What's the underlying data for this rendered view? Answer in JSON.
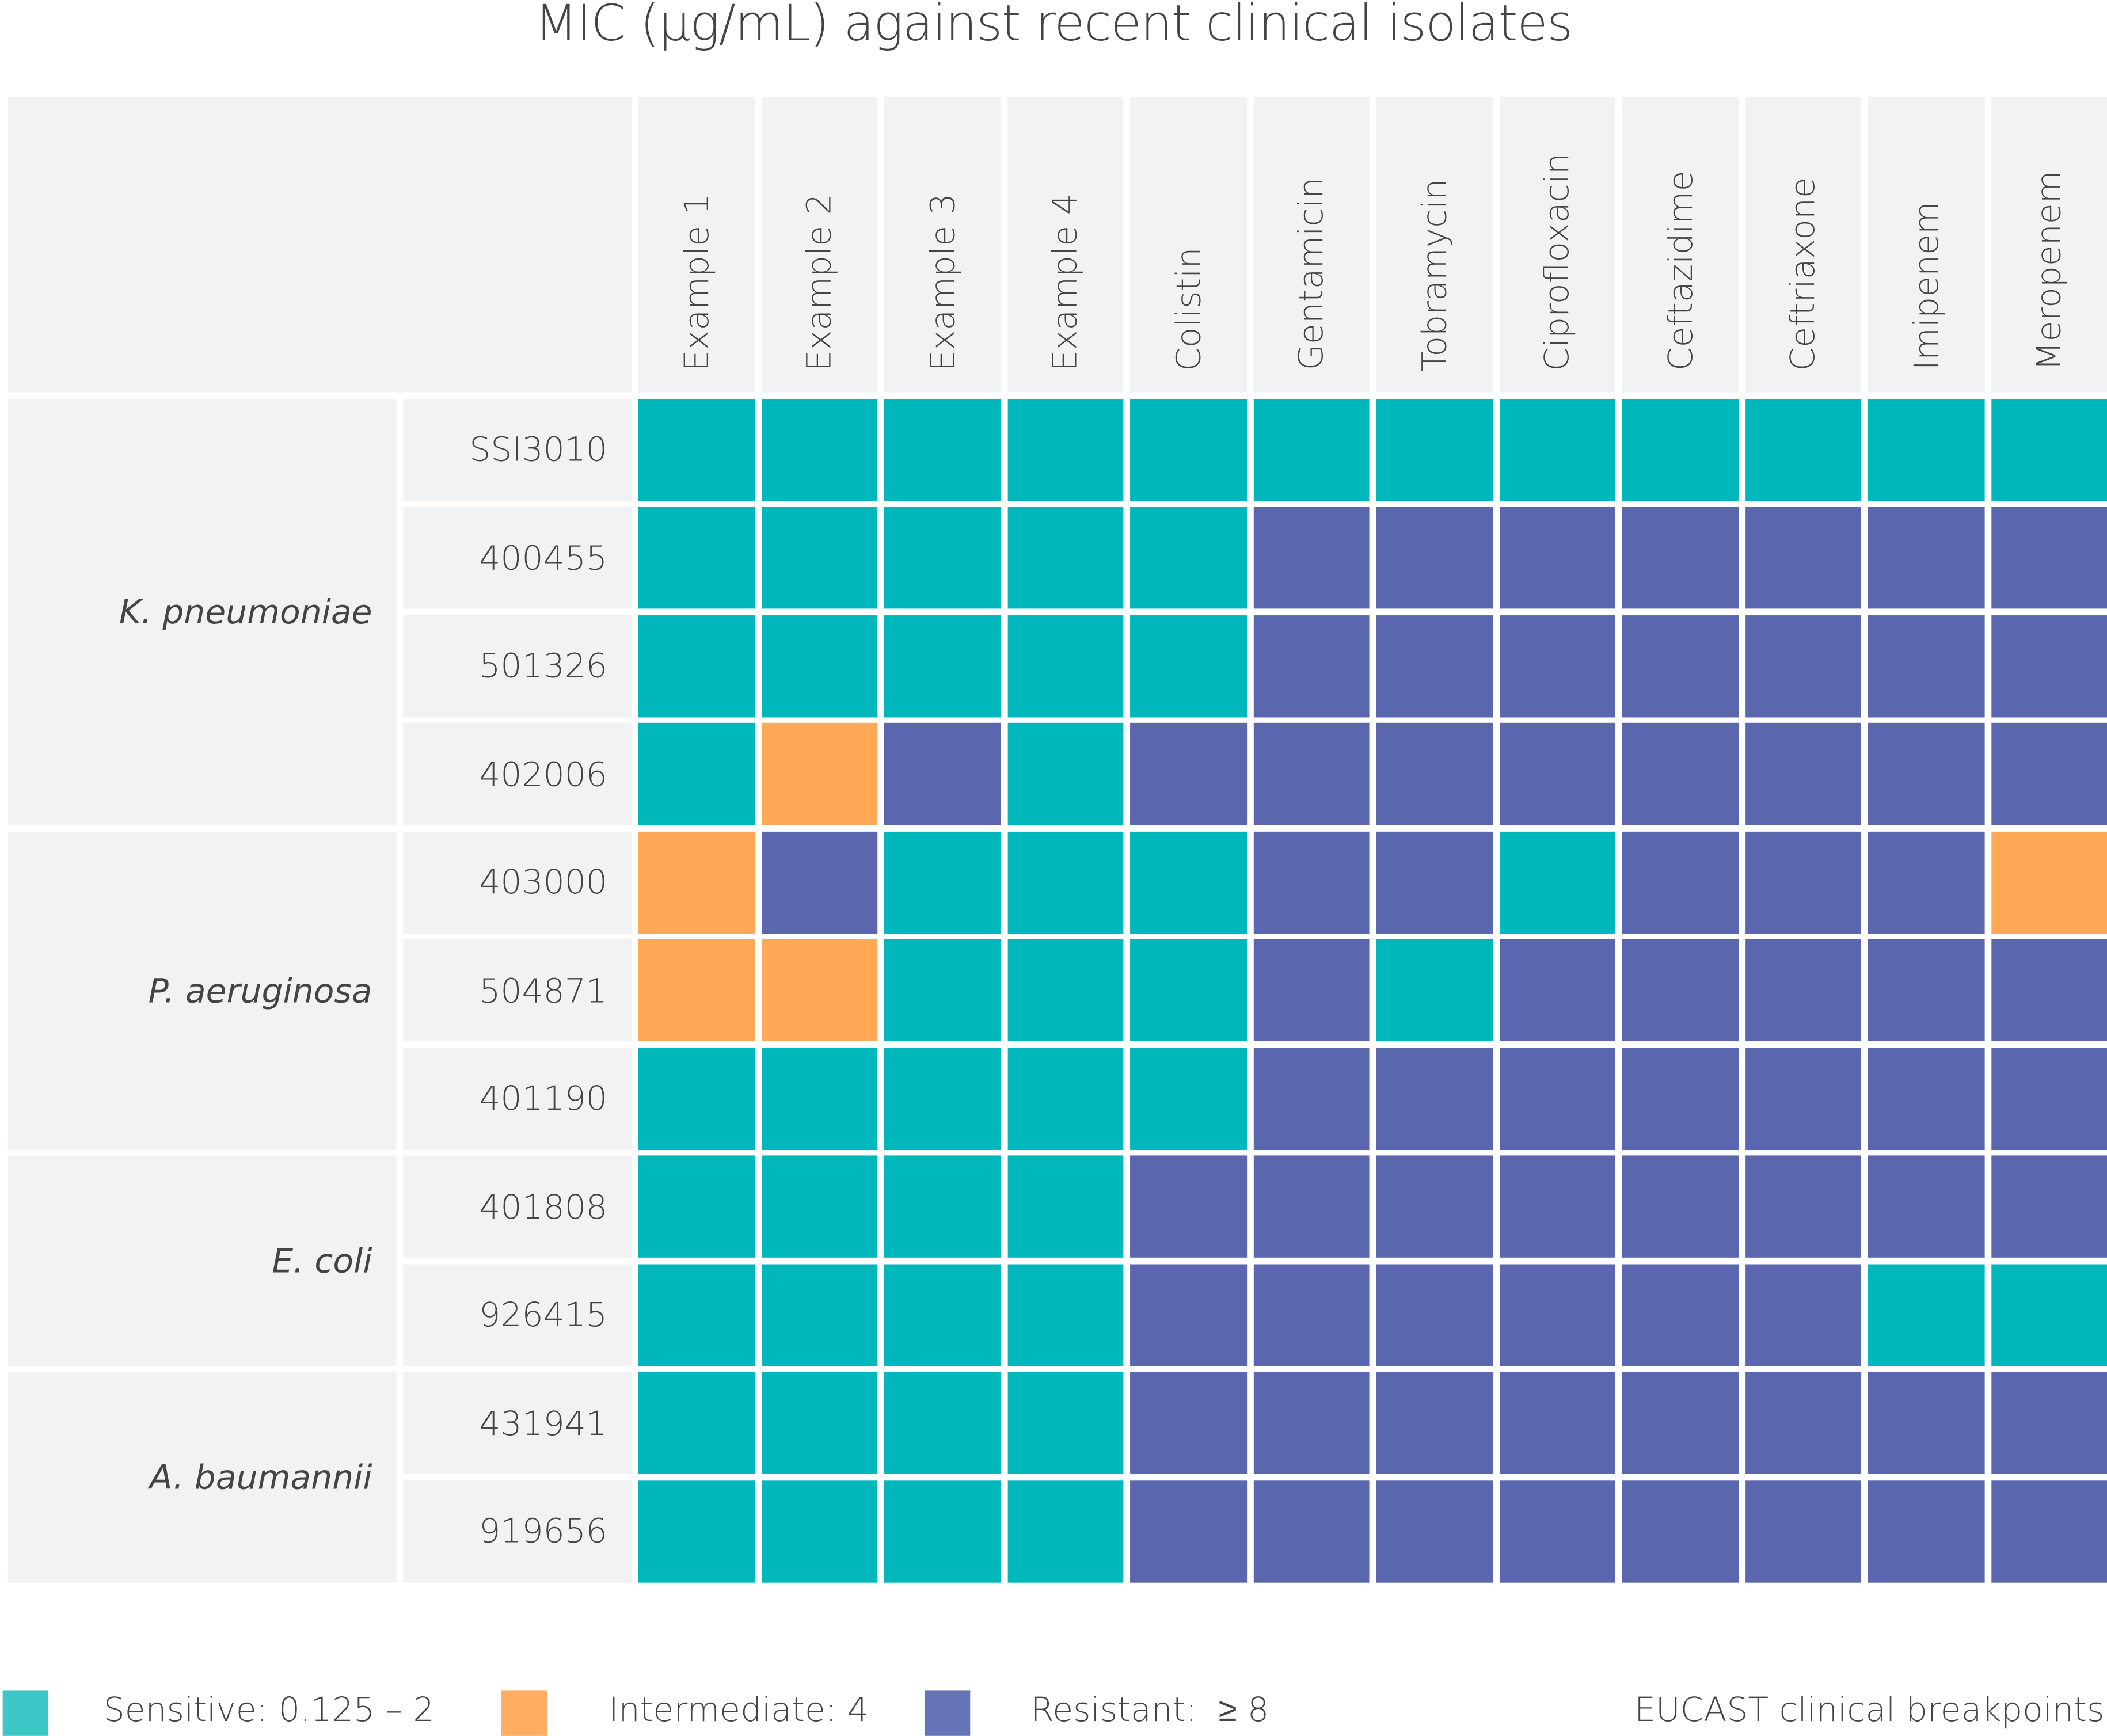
{
  "chart_data": {
    "type": "heatmap",
    "title": "MIC (µg/mL) against recent clinical isolates",
    "columns": [
      "Example 1",
      "Example 2",
      "Example 3",
      "Example 4",
      "Colistin",
      "Gentamicin",
      "Tobramycin",
      "Ciprofloxacin",
      "Ceftazidime",
      "Ceftriaxone",
      "Imipenem",
      "Meropenem"
    ],
    "groups": [
      {
        "species": "K. pneumoniae",
        "isolates": [
          "SSI3010",
          "400455",
          "501326",
          "402006"
        ]
      },
      {
        "species": "P. aeruginosa",
        "isolates": [
          "403000",
          "504871",
          "401190"
        ]
      },
      {
        "species": "E. coli",
        "isolates": [
          "401808",
          "926415"
        ]
      },
      {
        "species": "A. baumannii",
        "isolates": [
          "431941",
          "919656"
        ]
      }
    ],
    "rows": [
      {
        "isolate": "SSI3010",
        "values": [
          "S",
          "S",
          "S",
          "S",
          "S",
          "S",
          "S",
          "S",
          "S",
          "S",
          "S",
          "S"
        ]
      },
      {
        "isolate": "400455",
        "values": [
          "S",
          "S",
          "S",
          "S",
          "S",
          "R",
          "R",
          "R",
          "R",
          "R",
          "R",
          "R"
        ]
      },
      {
        "isolate": "501326",
        "values": [
          "S",
          "S",
          "S",
          "S",
          "S",
          "R",
          "R",
          "R",
          "R",
          "R",
          "R",
          "R"
        ]
      },
      {
        "isolate": "402006",
        "values": [
          "S",
          "I",
          "R",
          "S",
          "R",
          "R",
          "R",
          "R",
          "R",
          "R",
          "R",
          "R"
        ]
      },
      {
        "isolate": "403000",
        "values": [
          "I",
          "R",
          "S",
          "S",
          "S",
          "R",
          "R",
          "S",
          "R",
          "R",
          "R",
          "I"
        ]
      },
      {
        "isolate": "504871",
        "values": [
          "I",
          "I",
          "S",
          "S",
          "S",
          "R",
          "S",
          "R",
          "R",
          "R",
          "R",
          "R"
        ]
      },
      {
        "isolate": "401190",
        "values": [
          "S",
          "S",
          "S",
          "S",
          "S",
          "R",
          "R",
          "R",
          "R",
          "R",
          "R",
          "R"
        ]
      },
      {
        "isolate": "401808",
        "values": [
          "S",
          "S",
          "S",
          "S",
          "R",
          "R",
          "R",
          "R",
          "R",
          "R",
          "R",
          "R"
        ]
      },
      {
        "isolate": "926415",
        "values": [
          "S",
          "S",
          "S",
          "S",
          "R",
          "R",
          "R",
          "R",
          "R",
          "R",
          "S",
          "S"
        ]
      },
      {
        "isolate": "431941",
        "values": [
          "S",
          "S",
          "S",
          "S",
          "R",
          "R",
          "R",
          "R",
          "R",
          "R",
          "R",
          "R"
        ]
      },
      {
        "isolate": "919656",
        "values": [
          "S",
          "S",
          "S",
          "S",
          "R",
          "R",
          "R",
          "R",
          "R",
          "R",
          "R",
          "R"
        ]
      }
    ],
    "categories": {
      "S": {
        "label": "Sensitive: 0.125 – 2",
        "color": "#00b8bc",
        "legend_color": "#3ec7c7"
      },
      "I": {
        "label": "Intermediate: 4",
        "color": "#ffa857",
        "legend_color": "#ffad60"
      },
      "R": {
        "label": "Resistant:  ≥ 8",
        "color": "#5a67ae",
        "legend_color": "#6673b4"
      }
    },
    "legend_position": "bottom",
    "source": "EUCAST clinical breakpoints"
  }
}
